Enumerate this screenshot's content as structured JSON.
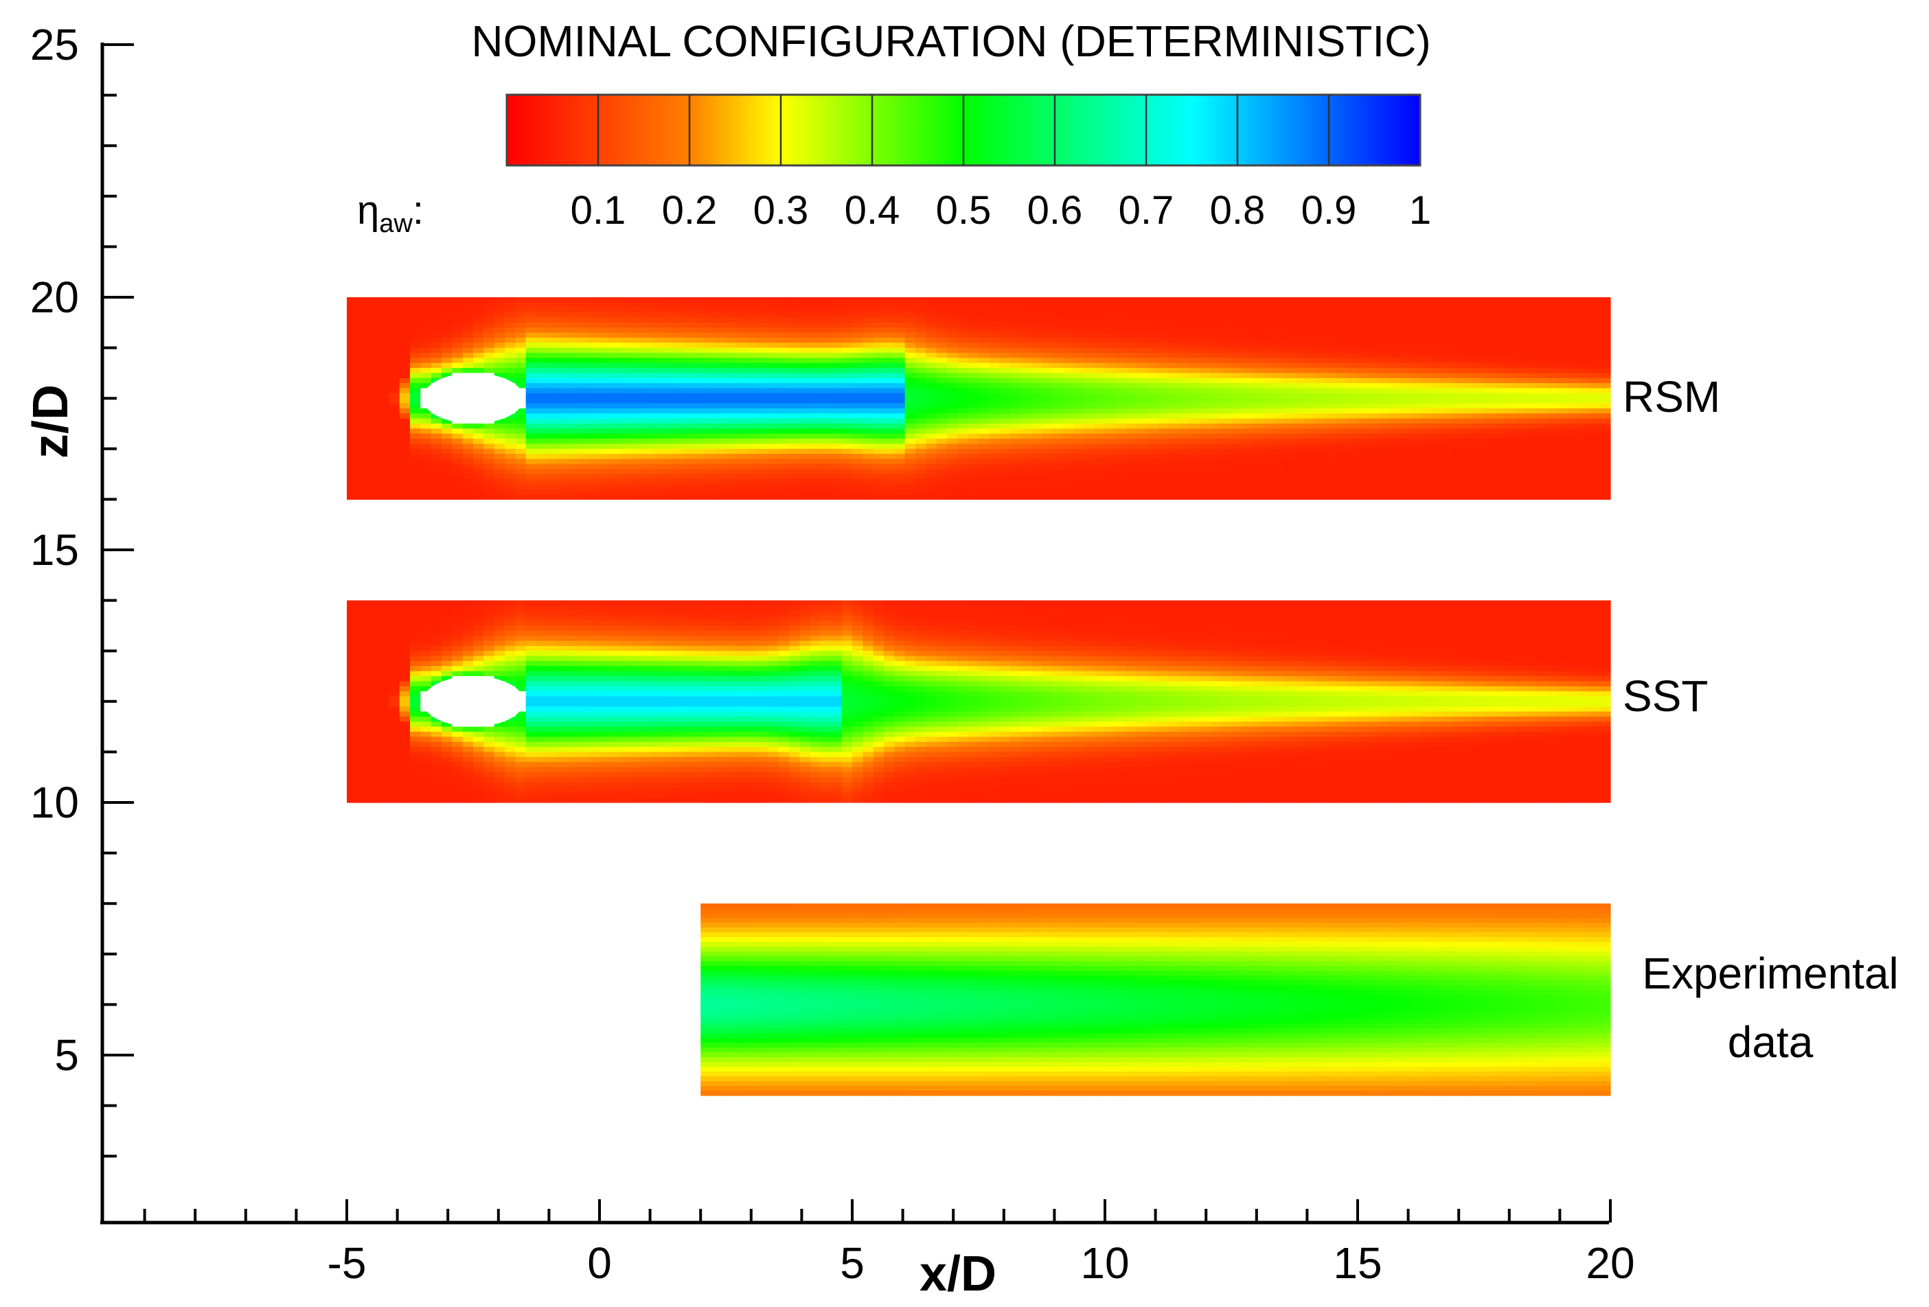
{
  "chart_data": {
    "type": "heatmap",
    "title": "NOMINAL CONFIGURATION (DETERMINISTIC)",
    "xlabel": "x/D",
    "ylabel": "z/D",
    "xlim": [
      -9.5,
      20
    ],
    "ylim": [
      2,
      25
    ],
    "x_ticks": [
      "-5",
      "0",
      "5",
      "10",
      "15",
      "20"
    ],
    "x_tick_values": [
      -5,
      0,
      5,
      10,
      15,
      20
    ],
    "y_ticks": [
      "5",
      "10",
      "15",
      "20",
      "25"
    ],
    "y_tick_values": [
      5,
      10,
      15,
      20,
      25
    ],
    "colorbar": {
      "variable": "η",
      "variable_subscript": "aw",
      "range": [
        0,
        1
      ],
      "ticks": [
        "0.1",
        "0.2",
        "0.3",
        "0.4",
        "0.5",
        "0.6",
        "0.7",
        "0.8",
        "0.9",
        "1"
      ],
      "tick_values": [
        0.1,
        0.2,
        0.3,
        0.4,
        0.5,
        0.6,
        0.7,
        0.8,
        0.9,
        1.0
      ],
      "colormap": [
        "#ff0000",
        "#ff8000",
        "#ffff00",
        "#00ff00",
        "#00ffff",
        "#0000ff"
      ]
    },
    "panels": [
      {
        "name": "RSM",
        "label": "RSM",
        "x_range": [
          -5,
          20
        ],
        "z_range": [
          16,
          20
        ],
        "centerline_z": 18,
        "hole_center_x": -2.5,
        "hole_width_x": 2.0,
        "hole_height_z": 1.0,
        "core_peak_eta": 0.9,
        "core_end_x": 6,
        "tail_eta_at_end": 0.3
      },
      {
        "name": "SST",
        "label": "SST",
        "x_range": [
          -5,
          20
        ],
        "z_range": [
          10,
          14
        ],
        "centerline_z": 12,
        "hole_center_x": -2.5,
        "hole_width_x": 2.0,
        "hole_height_z": 1.0,
        "core_peak_eta": 0.8,
        "core_end_x": 4.8,
        "tail_eta_at_end": 0.3
      },
      {
        "name": "Experimental",
        "label_line1": "Experimental",
        "label_line2": "data",
        "x_range": [
          2,
          20
        ],
        "z_range": [
          4.2,
          8
        ],
        "centerline_z": 6,
        "centerline_eta_start": 0.65,
        "centerline_eta_end": 0.45
      }
    ]
  }
}
